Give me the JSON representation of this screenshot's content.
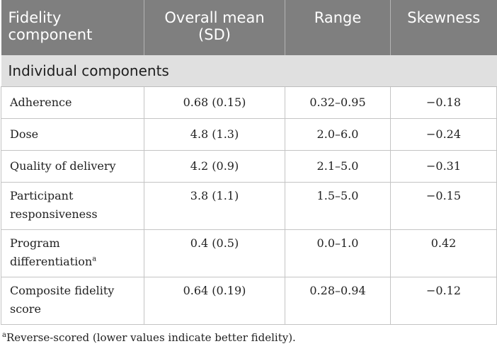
{
  "table": {
    "headers": [
      "Fidelity component",
      "Overall mean (SD)",
      "Range",
      "Skewness"
    ],
    "section_label": "Individual components",
    "rows": [
      {
        "component": "Adherence",
        "marker": "",
        "mean_sd": "0.68 (0.15)",
        "range": "0.32–0.95",
        "skewness": "−0.18"
      },
      {
        "component": "Dose",
        "marker": "",
        "mean_sd": "4.8 (1.3)",
        "range": "2.0–6.0",
        "skewness": "−0.24"
      },
      {
        "component": "Quality of delivery",
        "marker": "",
        "mean_sd": "4.2 (0.9)",
        "range": "2.1–5.0",
        "skewness": "−0.31"
      },
      {
        "component": "Participant responsiveness",
        "marker": "",
        "mean_sd": "3.8 (1.1)",
        "range": "1.5–5.0",
        "skewness": "−0.15"
      },
      {
        "component": "Program differentiation",
        "marker": "a",
        "mean_sd": "0.4 (0.5)",
        "range": "0.0–1.0",
        "skewness": "0.42"
      },
      {
        "component": "Composite fidelity score",
        "marker": "",
        "mean_sd": "0.64 (0.19)",
        "range": "0.28–0.94",
        "skewness": "−0.12"
      }
    ]
  },
  "footnote": {
    "marker": "a",
    "text": "Reverse-scored (lower values indicate better fidelity)."
  }
}
